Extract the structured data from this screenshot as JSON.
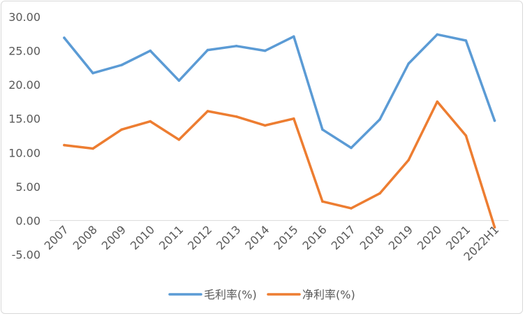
{
  "chart_data": {
    "type": "line",
    "title": "",
    "xlabel": "",
    "ylabel": "",
    "categories": [
      "2007",
      "2008",
      "2009",
      "2010",
      "2011",
      "2012",
      "2013",
      "2014",
      "2015",
      "2016",
      "2017",
      "2018",
      "2019",
      "2020",
      "2021",
      "2022H1"
    ],
    "series": [
      {
        "name": "毛利率(%)",
        "color": "#5b9bd5",
        "values": [
          26.9,
          21.7,
          22.9,
          25.0,
          20.6,
          25.1,
          25.7,
          25.0,
          27.1,
          13.4,
          10.7,
          14.9,
          23.1,
          27.4,
          26.5,
          14.7
        ]
      },
      {
        "name": "净利率(%)",
        "color": "#ed7d31",
        "values": [
          11.1,
          10.6,
          13.4,
          14.6,
          11.9,
          16.1,
          15.3,
          14.0,
          15.0,
          2.8,
          1.8,
          4.0,
          8.9,
          17.5,
          12.5,
          -1.0
        ]
      }
    ],
    "ylim": [
      -5,
      30
    ],
    "yticks": [
      "30.00",
      "25.00",
      "20.00",
      "15.00",
      "10.00",
      "5.00",
      "0.00",
      "-5.00"
    ],
    "grid": false,
    "legend_position": "bottom"
  }
}
